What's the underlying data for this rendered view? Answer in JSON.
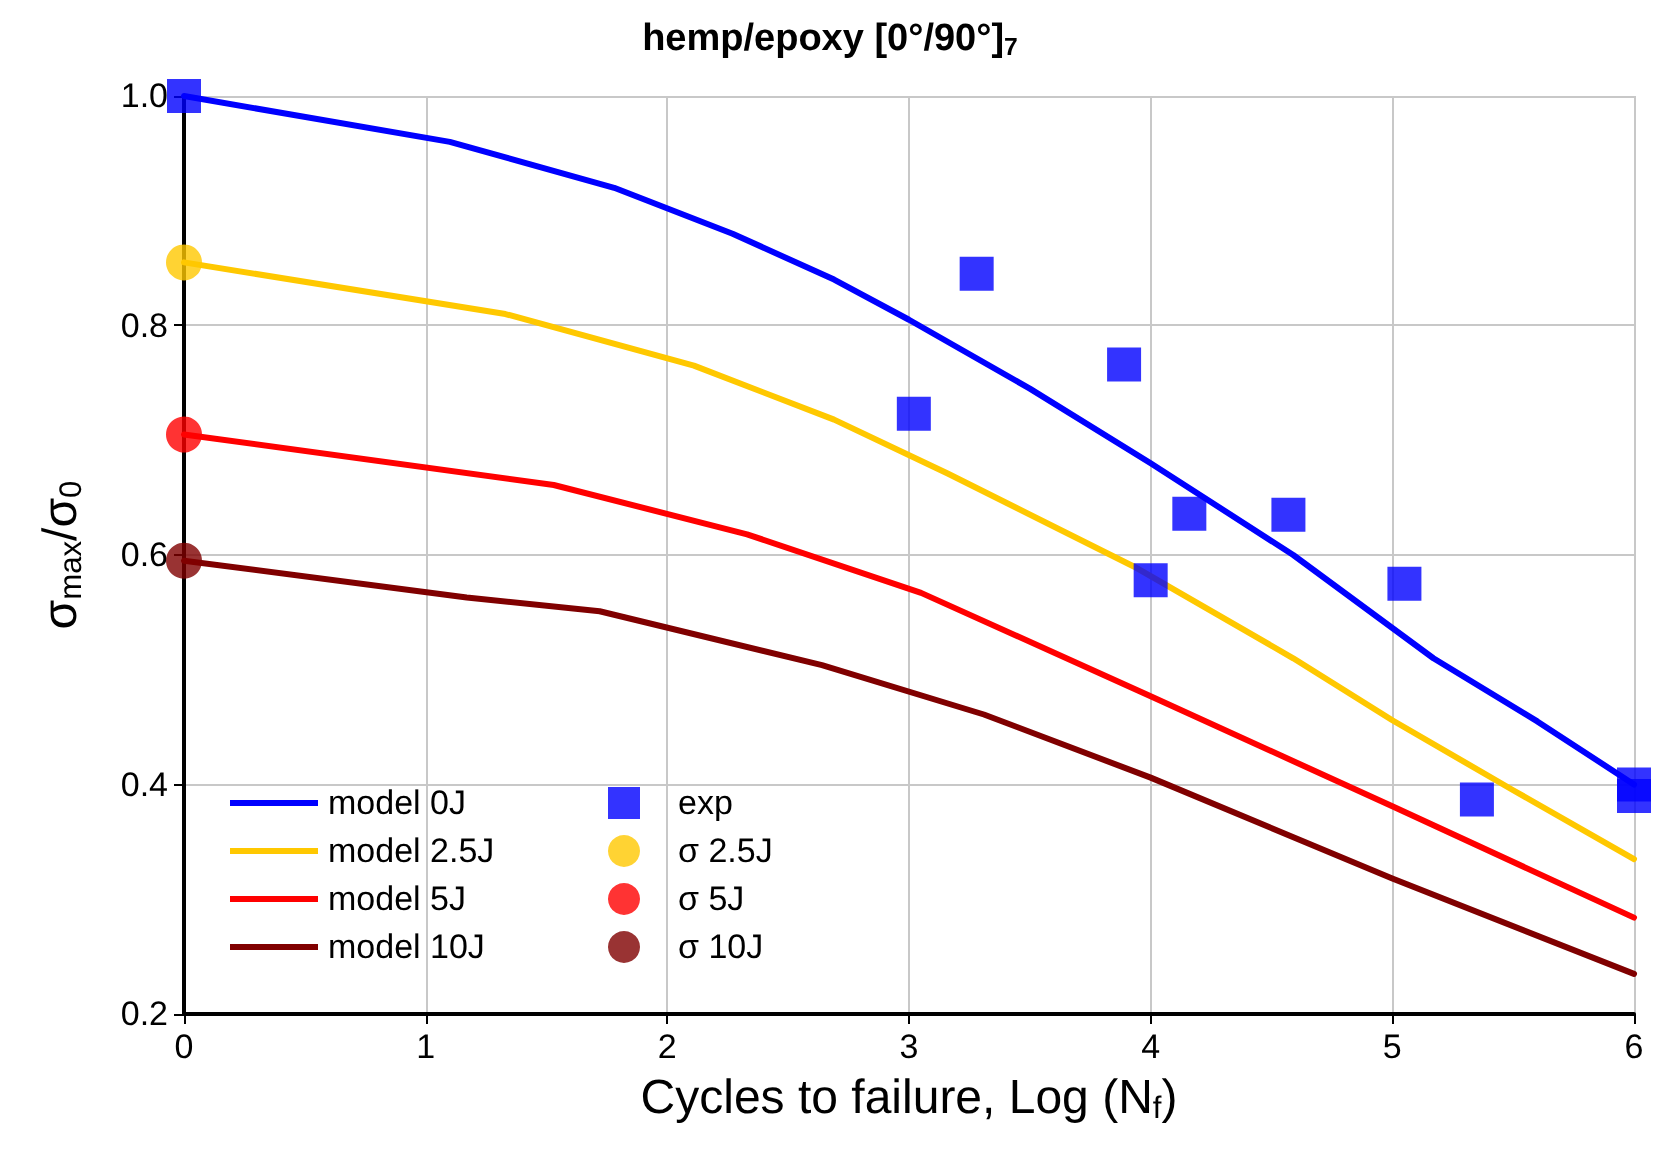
{
  "chart_data": {
    "type": "line",
    "title": "hemp/epoxy [0°/90°]$_{7}$",
    "xlabel": "Cycles to failure, Log (N$_{f}$)",
    "ylabel": "σ$_{max}$/σ$_{0}$",
    "xlim": [
      0,
      6
    ],
    "xticks": [
      0,
      1,
      2,
      3,
      4,
      5,
      6
    ],
    "ylim": [
      0.2,
      1
    ],
    "yticks": [
      0.2,
      0.4,
      0.6,
      0.8,
      {
        "value": 1,
        "label": "1.0"
      }
    ],
    "grid": true,
    "legend": "bottom left",
    "series": [
      {
        "name": "model 0J",
        "marker": "none",
        "color": "#0000ff",
        "x": [
          0,
          1.1,
          1.78,
          2.27,
          2.69,
          3,
          3.5,
          4,
          4.59,
          5.17,
          5.6,
          6
        ],
        "values": [
          1.0,
          0.96,
          0.92,
          0.88,
          0.84,
          0.805,
          0.745,
          0.68,
          0.6,
          0.51,
          0.455,
          0.4
        ]
      },
      {
        "name": "model 2.5J",
        "marker": "none",
        "color": "#ffc800",
        "x": [
          0,
          1.33,
          2.11,
          2.69,
          3.16,
          3.93,
          4.59,
          5,
          5.5,
          6
        ],
        "values": [
          0.855,
          0.81,
          0.765,
          0.718,
          0.671,
          0.59,
          0.51,
          0.456,
          0.395,
          0.335
        ]
      },
      {
        "name": "model 5J",
        "marker": "none",
        "color": "#ff0000",
        "x": [
          0,
          1.53,
          2.33,
          3.05,
          4,
          5,
          6
        ],
        "values": [
          0.705,
          0.661,
          0.618,
          0.567,
          0.477,
          0.381,
          0.284
        ]
      },
      {
        "name": "model 10J",
        "marker": "none",
        "color": "#800000",
        "x": [
          0,
          1.17,
          1.72,
          2.64,
          3.31,
          4,
          5,
          6
        ],
        "values": [
          0.595,
          0.563,
          0.551,
          0.504,
          0.461,
          0.406,
          0.318,
          0.235
        ]
      },
      {
        "name": "exp",
        "type": "scatter",
        "marker": "square",
        "color": "#0000ff",
        "x": [
          0,
          3.02,
          3.28,
          3.89,
          4.0,
          4.16,
          4.57,
          5.05,
          5.35,
          6,
          6
        ],
        "values": [
          1.0,
          0.723,
          0.845,
          0.766,
          0.578,
          0.636,
          0.635,
          0.575,
          0.387,
          0.4,
          0.39
        ]
      },
      {
        "name": "σ 2.5J",
        "type": "scatter",
        "marker": "circle",
        "color": "#ffc800",
        "x": [
          0
        ],
        "values": [
          0.855
        ]
      },
      {
        "name": "σ 5J",
        "type": "scatter",
        "marker": "circle",
        "color": "#ff0000",
        "x": [
          0
        ],
        "values": [
          0.705
        ]
      },
      {
        "name": "σ 10J",
        "type": "scatter",
        "marker": "circle",
        "color": "#800000",
        "x": [
          0
        ],
        "values": [
          0.595
        ]
      }
    ]
  }
}
